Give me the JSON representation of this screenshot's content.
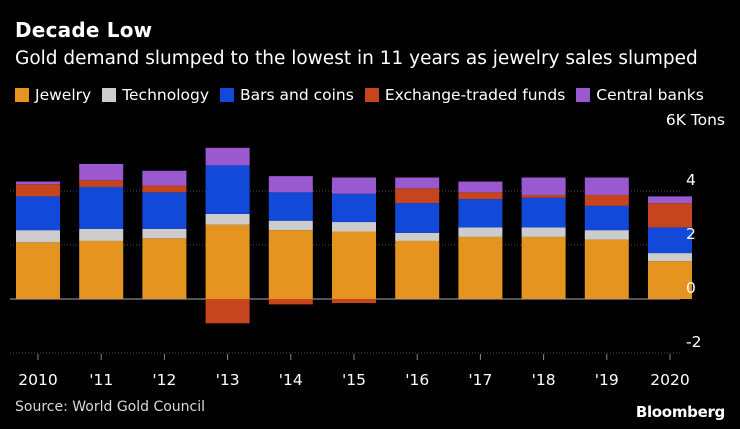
{
  "header": {
    "title": "Decade Low",
    "subtitle": "Gold demand slumped to the lowest in 11 years as jewelry sales slumped"
  },
  "legend": [
    {
      "label": "Jewelry",
      "color": "#e5951f"
    },
    {
      "label": "Technology",
      "color": "#cccccc"
    },
    {
      "label": "Bars and coins",
      "color": "#1249d8"
    },
    {
      "label": "Exchange-traded funds",
      "color": "#c6441e"
    },
    {
      "label": "Central banks",
      "color": "#9b59d0"
    }
  ],
  "unit_label": "6K Tons",
  "footer": {
    "source": "Source: World Gold Council",
    "brand": "Bloomberg"
  },
  "chart_data": {
    "type": "bar",
    "stacked": true,
    "categories": [
      "2010",
      "'11",
      "'12",
      "'13",
      "'14",
      "'15",
      "'16",
      "'17",
      "'18",
      "'19",
      "2020"
    ],
    "series": [
      {
        "name": "Jewelry",
        "color": "#e5951f",
        "values": [
          2.1,
          2.15,
          2.25,
          2.75,
          2.55,
          2.5,
          2.15,
          2.3,
          2.3,
          2.2,
          1.4
        ]
      },
      {
        "name": "Technology",
        "color": "#cccccc",
        "values": [
          0.45,
          0.45,
          0.35,
          0.4,
          0.35,
          0.35,
          0.3,
          0.35,
          0.35,
          0.35,
          0.3
        ]
      },
      {
        "name": "Bars and coins",
        "color": "#1249d8",
        "values": [
          1.25,
          1.55,
          1.35,
          1.8,
          1.05,
          1.05,
          1.1,
          1.05,
          1.1,
          0.9,
          0.95
        ]
      },
      {
        "name": "Exchange-traded funds",
        "color": "#c6441e",
        "values": [
          0.45,
          0.25,
          0.25,
          -0.9,
          -0.2,
          -0.15,
          0.55,
          0.25,
          0.1,
          0.4,
          0.9
        ]
      },
      {
        "name": "Central banks",
        "color": "#9b59d0",
        "values": [
          0.1,
          0.6,
          0.55,
          0.65,
          0.6,
          0.6,
          0.4,
          0.4,
          0.65,
          0.65,
          0.25
        ]
      }
    ],
    "ylim": [
      -2,
      6
    ],
    "yticks": [
      4,
      2,
      0,
      -2
    ],
    "ytick_labels": [
      "4",
      "2",
      "0",
      "-2"
    ],
    "grid": true
  }
}
